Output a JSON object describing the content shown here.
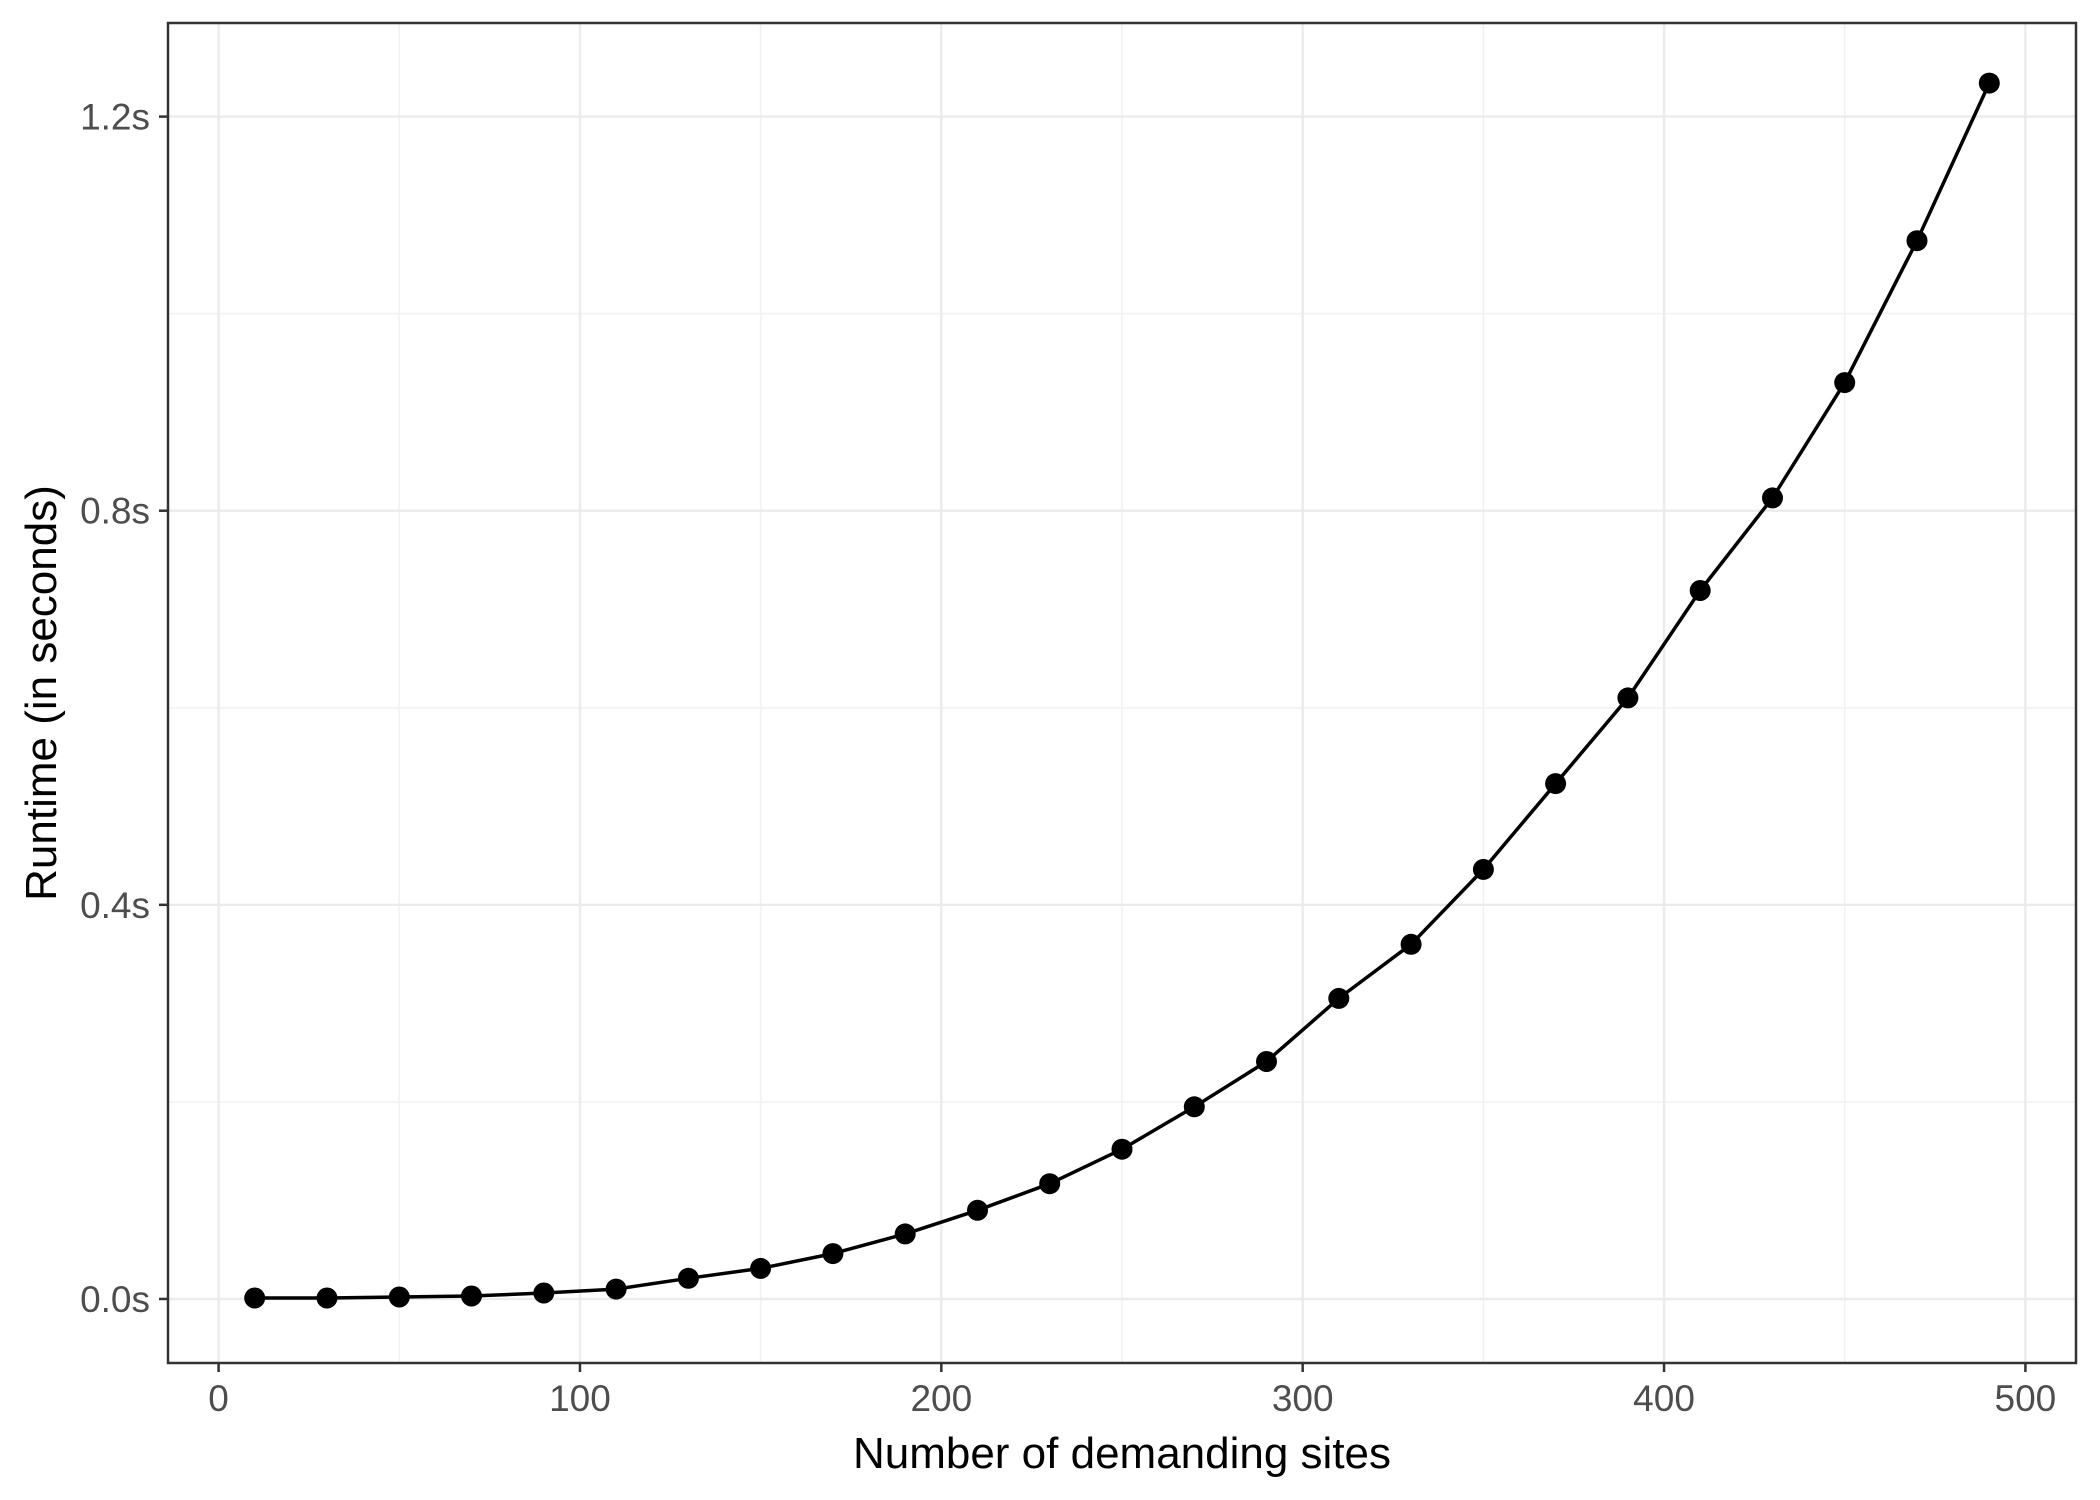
{
  "chart_data": {
    "type": "line",
    "title": "",
    "xlabel": "Number of demanding sites",
    "ylabel": "Runtime (in seconds)",
    "legend": "none",
    "grid": "major+minor",
    "marker": "filled-circle",
    "series": [
      {
        "name": "runtime",
        "x": [
          10,
          30,
          50,
          70,
          90,
          110,
          130,
          150,
          170,
          190,
          210,
          230,
          250,
          270,
          290,
          310,
          330,
          350,
          370,
          390,
          410,
          430,
          450,
          470,
          490
        ],
        "y": [
          0.001,
          0.001,
          0.002,
          0.003,
          0.006,
          0.01,
          0.021,
          0.031,
          0.046,
          0.066,
          0.09,
          0.117,
          0.152,
          0.195,
          0.241,
          0.305,
          0.36,
          0.436,
          0.523,
          0.61,
          0.719,
          0.813,
          0.93,
          1.074,
          1.234
        ]
      }
    ],
    "x_ticks": {
      "values": [
        0,
        100,
        200,
        300,
        400,
        500
      ],
      "labels": [
        "0",
        "100",
        "200",
        "300",
        "400",
        "500"
      ],
      "minor": [
        50,
        150,
        250,
        350,
        450
      ]
    },
    "y_ticks": {
      "values": [
        0,
        0.4,
        0.8,
        1.2
      ],
      "labels": [
        "0.0s",
        "0.4s",
        "0.8s",
        "1.2s"
      ],
      "minor": [
        0.2,
        0.6,
        1.0
      ]
    },
    "xlim": [
      -14,
      514
    ],
    "ylim": [
      -0.065,
      1.295
    ],
    "colors": {
      "background": "#FFFFFF",
      "panel_background": "#FFFFFF",
      "panel_border": "#333333",
      "grid_major": "#EBEBEB",
      "grid_minor": "#F2F2F2",
      "tick": "#333333",
      "tick_label": "#4D4D4D",
      "axis_title": "#000000",
      "line": "#000000",
      "point": "#000000"
    }
  }
}
